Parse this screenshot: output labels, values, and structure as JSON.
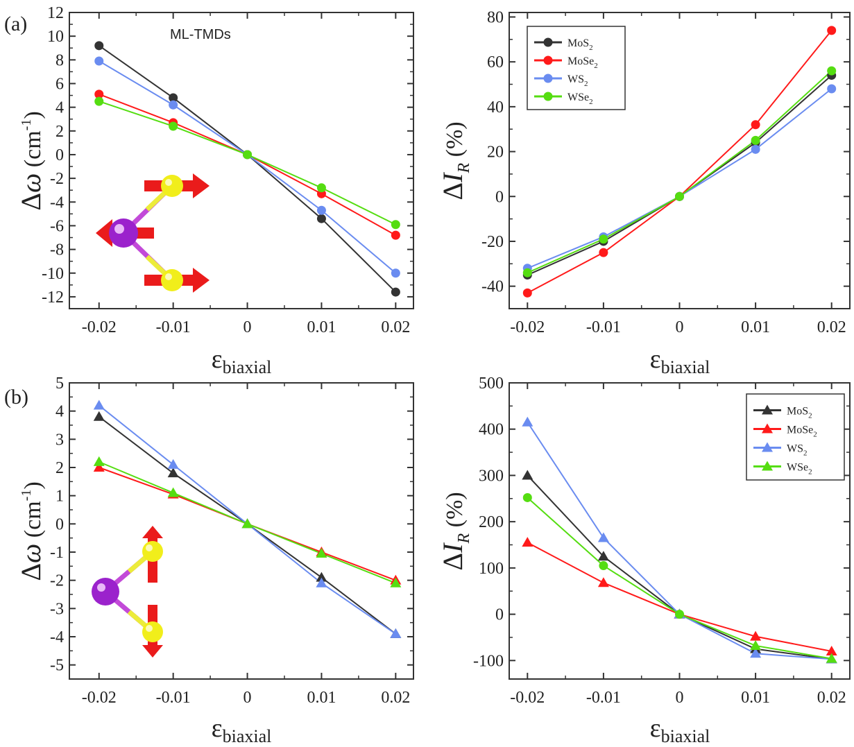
{
  "figure": {
    "panel_labels": [
      "(a)",
      "(b)"
    ],
    "annotation": "ML-TMDs",
    "xlabel_main": "ε",
    "xlabel_sub": "biaxial",
    "ylabel_left_pre": "Δ",
    "ylabel_left_sym": "ω",
    "ylabel_left_unit": " (cm",
    "ylabel_left_exp": "-1",
    "ylabel_left_close": ")",
    "ylabel_right_pre": "Δ",
    "ylabel_right_sym": "I",
    "ylabel_right_sub": "R",
    "ylabel_right_unit": " (%)"
  },
  "legend_labels": [
    {
      "base": "MoS",
      "sub": "2"
    },
    {
      "base": "MoSe",
      "sub": "2"
    },
    {
      "base": "WS",
      "sub": "2"
    },
    {
      "base": "WSe",
      "sub": "2"
    }
  ],
  "colors": {
    "MoS2": "#333333",
    "MoSe2": "#ff1a1a",
    "WS2": "#6a8cf0",
    "WSe2": "#55dd11"
  },
  "chart_data": [
    {
      "id": "a-left",
      "type": "line",
      "marker": "circle",
      "x": [
        -0.02,
        -0.01,
        0,
        0.01,
        0.02
      ],
      "xticks": [
        "-0.02",
        "-0.01",
        "0",
        "0.01",
        "0.02"
      ],
      "xlim": [
        -0.024,
        0.0224
      ],
      "ylim": [
        -13,
        12
      ],
      "yticks": [
        12,
        10,
        8,
        6,
        4,
        2,
        0,
        -2,
        -4,
        -6,
        -8,
        -10,
        -12
      ],
      "ytick_labels": [
        "12",
        "10",
        "8",
        "6",
        "4",
        "2",
        "0",
        "-2",
        "-4",
        "-6",
        "-8",
        "-10",
        "-12"
      ],
      "xlabel": "ε biaxial",
      "ylabel": "Δω (cm-1)",
      "series": [
        {
          "name": "MoS2",
          "values": [
            9.2,
            4.8,
            0,
            -5.4,
            -11.6
          ]
        },
        {
          "name": "MoSe2",
          "values": [
            5.1,
            2.7,
            0,
            -3.3,
            -6.8
          ]
        },
        {
          "name": "WS2",
          "values": [
            7.9,
            4.2,
            0,
            -4.7,
            -10.0
          ]
        },
        {
          "name": "WSe2",
          "values": [
            4.5,
            2.4,
            0,
            -2.8,
            -5.9
          ]
        }
      ]
    },
    {
      "id": "a-right",
      "type": "line",
      "marker": "circle",
      "x": [
        -0.02,
        -0.01,
        0,
        0.01,
        0.02
      ],
      "xticks": [
        "-0.02",
        "-0.01",
        "0",
        "0.01",
        "0.02"
      ],
      "xlim": [
        -0.0224,
        0.0224
      ],
      "ylim": [
        -50,
        82
      ],
      "yticks": [
        80,
        60,
        40,
        20,
        0,
        -20,
        -40
      ],
      "ytick_labels": [
        "80",
        "60",
        "40",
        "20",
        "0",
        "-20",
        "-40"
      ],
      "xlabel": "ε biaxial",
      "ylabel": "ΔI_R (%)",
      "legend": "top-left",
      "series": [
        {
          "name": "MoS2",
          "values": [
            -35,
            -20,
            0,
            24,
            54
          ]
        },
        {
          "name": "MoSe2",
          "values": [
            -43,
            -25,
            0,
            32,
            74
          ]
        },
        {
          "name": "WS2",
          "values": [
            -32,
            -18,
            0,
            21,
            48
          ]
        },
        {
          "name": "WSe2",
          "values": [
            -34,
            -19,
            0,
            25,
            56
          ]
        }
      ]
    },
    {
      "id": "b-left",
      "type": "line",
      "marker": "triangle",
      "x": [
        -0.02,
        -0.01,
        0,
        0.01,
        0.02
      ],
      "xticks": [
        "-0.02",
        "-0.01",
        "0",
        "0.01",
        "0.02"
      ],
      "xlim": [
        -0.024,
        0.0224
      ],
      "ylim": [
        -5.5,
        5
      ],
      "yticks": [
        5,
        4,
        3,
        2,
        1,
        0,
        -1,
        -2,
        -3,
        -4,
        -5
      ],
      "ytick_labels": [
        "5",
        "4",
        "3",
        "2",
        "1",
        "0",
        "-1",
        "-2",
        "-3",
        "-4",
        "-5"
      ],
      "xlabel": "ε biaxial",
      "ylabel": "Δω (cm-1)",
      "series": [
        {
          "name": "MoS2",
          "values": [
            3.8,
            1.8,
            0,
            -1.9,
            -3.9
          ]
        },
        {
          "name": "MoSe2",
          "values": [
            2.0,
            1.05,
            0,
            -1.0,
            -2.0
          ]
        },
        {
          "name": "WS2",
          "values": [
            4.2,
            2.1,
            0,
            -2.1,
            -3.9
          ]
        },
        {
          "name": "WSe2",
          "values": [
            2.2,
            1.1,
            0,
            -1.05,
            -2.1
          ]
        }
      ]
    },
    {
      "id": "b-right",
      "type": "line",
      "marker": "triangle",
      "x": [
        -0.02,
        -0.01,
        0,
        0.01,
        0.02
      ],
      "xticks": [
        "-0.02",
        "-0.01",
        "0",
        "0.01",
        "0.02"
      ],
      "xlim": [
        -0.0224,
        0.0224
      ],
      "ylim": [
        -140,
        500
      ],
      "yticks": [
        500,
        400,
        300,
        200,
        100,
        0,
        -100
      ],
      "ytick_labels": [
        "500",
        "400",
        "300",
        "200",
        "100",
        "0",
        "-100"
      ],
      "xlabel": "ε biaxial",
      "ylabel": "ΔI_R (%)",
      "legend": "top-right",
      "series": [
        {
          "name": "MoS2",
          "values": [
            300,
            125,
            0,
            -75,
            -97
          ]
        },
        {
          "name": "MoSe2",
          "values": [
            155,
            68,
            0,
            -48,
            -80
          ]
        },
        {
          "name": "WS2",
          "values": [
            415,
            165,
            0,
            -85,
            -97
          ]
        },
        {
          "name": "WSe2",
          "values": [
            252,
            105,
            0,
            -68,
            -96
          ],
          "marker": "circle"
        }
      ]
    }
  ]
}
